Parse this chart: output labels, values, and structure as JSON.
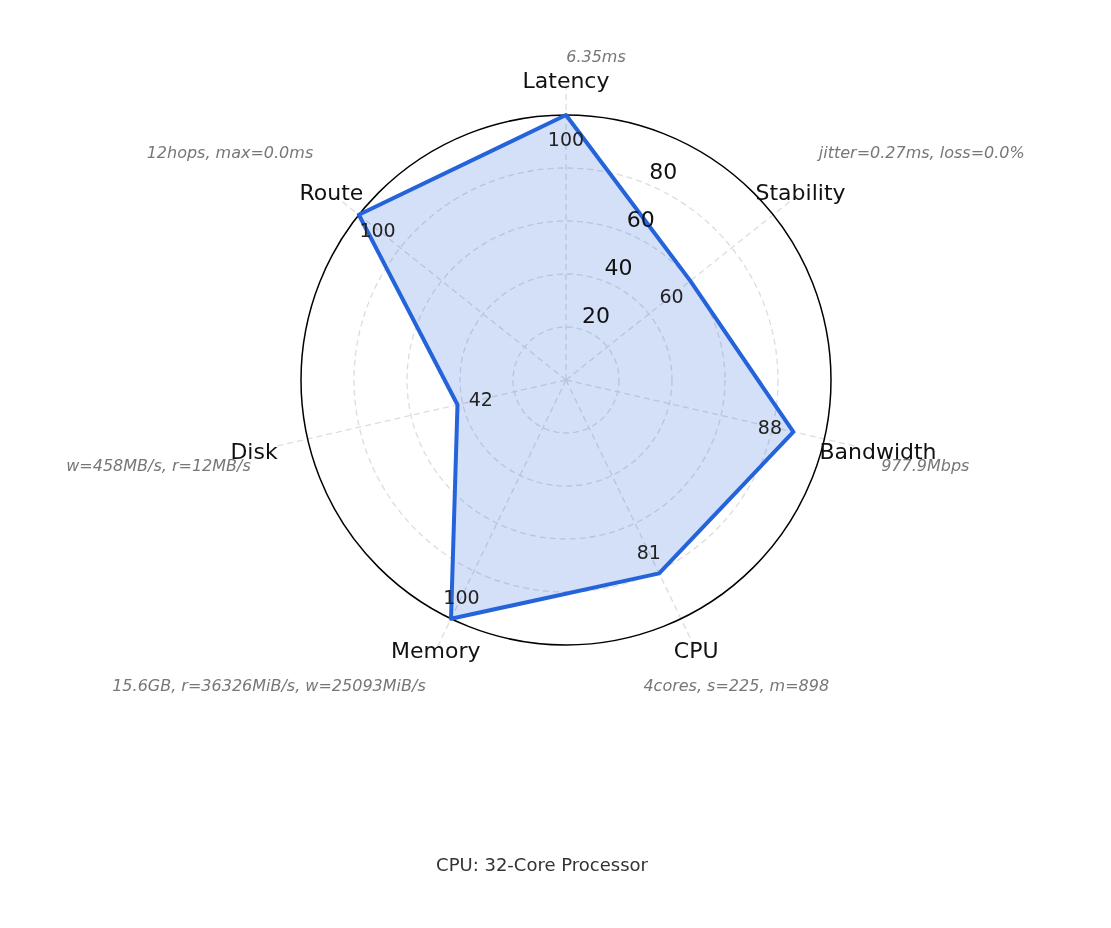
{
  "chart_data": {
    "type": "radar",
    "categories": [
      "Latency",
      "Stability",
      "Bandwidth",
      "CPU",
      "Memory",
      "Disk",
      "Route"
    ],
    "series": [
      {
        "color": "#2563db",
        "values": [
          100,
          60,
          88,
          81,
          100,
          42,
          100
        ]
      }
    ],
    "ylim": [
      0,
      100
    ],
    "yticks": [
      20,
      40,
      60,
      80
    ],
    "grid": true,
    "data_labels": true,
    "annotations": [
      "6.35ms",
      "jitter=0.27ms, loss=0.0%",
      "977.9Mbps",
      "4cores, s=225, m=898",
      "15.6GB, r=36326MiB/s, w=25093MiB/s",
      "w=458MB/s, r=12MB/s",
      "12hops, max=0.0ms",
      "CPU: 32-Core Processor"
    ]
  }
}
